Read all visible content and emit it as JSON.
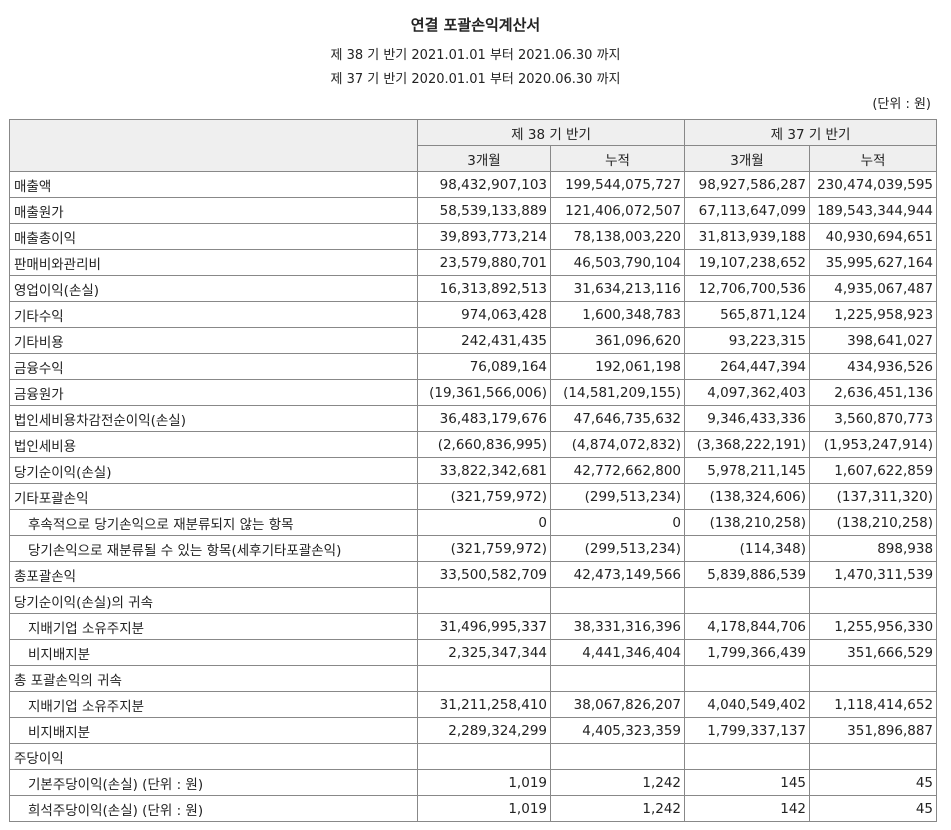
{
  "document": {
    "title": "연결 포괄손익계산서",
    "period_current": "제 38 기 반기 2021.01.01 부터 2021.06.30 까지",
    "period_prior": "제 37 기 반기 2020.01.01 부터 2020.06.30 까지",
    "unit": "(단위 : 원)"
  },
  "table": {
    "group_headers": [
      "제 38 기 반기",
      "제 37 기 반기"
    ],
    "sub_headers": [
      "3개월",
      "누적",
      "3개월",
      "누적"
    ],
    "rows": [
      {
        "label": "매출액",
        "indent": false,
        "values": [
          "98,432,907,103",
          "199,544,075,727",
          "98,927,586,287",
          "230,474,039,595"
        ]
      },
      {
        "label": "매출원가",
        "indent": false,
        "values": [
          "58,539,133,889",
          "121,406,072,507",
          "67,113,647,099",
          "189,543,344,944"
        ]
      },
      {
        "label": "매출총이익",
        "indent": false,
        "values": [
          "39,893,773,214",
          "78,138,003,220",
          "31,813,939,188",
          "40,930,694,651"
        ]
      },
      {
        "label": "판매비와관리비",
        "indent": false,
        "values": [
          "23,579,880,701",
          "46,503,790,104",
          "19,107,238,652",
          "35,995,627,164"
        ]
      },
      {
        "label": "영업이익(손실)",
        "indent": false,
        "values": [
          "16,313,892,513",
          "31,634,213,116",
          "12,706,700,536",
          "4,935,067,487"
        ]
      },
      {
        "label": "기타수익",
        "indent": false,
        "values": [
          "974,063,428",
          "1,600,348,783",
          "565,871,124",
          "1,225,958,923"
        ]
      },
      {
        "label": "기타비용",
        "indent": false,
        "values": [
          "242,431,435",
          "361,096,620",
          "93,223,315",
          "398,641,027"
        ]
      },
      {
        "label": "금융수익",
        "indent": false,
        "values": [
          "76,089,164",
          "192,061,198",
          "264,447,394",
          "434,936,526"
        ]
      },
      {
        "label": "금융원가",
        "indent": false,
        "values": [
          "(19,361,566,006)",
          "(14,581,209,155)",
          "4,097,362,403",
          "2,636,451,136"
        ]
      },
      {
        "label": "법인세비용차감전순이익(손실)",
        "indent": false,
        "values": [
          "36,483,179,676",
          "47,646,735,632",
          "9,346,433,336",
          "3,560,870,773"
        ]
      },
      {
        "label": "법인세비용",
        "indent": false,
        "values": [
          "(2,660,836,995)",
          "(4,874,072,832)",
          "(3,368,222,191)",
          "(1,953,247,914)"
        ]
      },
      {
        "label": "당기순이익(손실)",
        "indent": false,
        "values": [
          "33,822,342,681",
          "42,772,662,800",
          "5,978,211,145",
          "1,607,622,859"
        ]
      },
      {
        "label": "기타포괄손익",
        "indent": false,
        "values": [
          "(321,759,972)",
          "(299,513,234)",
          "(138,324,606)",
          "(137,311,320)"
        ]
      },
      {
        "label": "후속적으로 당기손익으로 재분류되지 않는 항목",
        "indent": true,
        "values": [
          "0",
          "0",
          "(138,210,258)",
          "(138,210,258)"
        ]
      },
      {
        "label": "당기손익으로 재분류될 수 있는 항목(세후기타포괄손익)",
        "indent": true,
        "values": [
          "(321,759,972)",
          "(299,513,234)",
          "(114,348)",
          "898,938"
        ]
      },
      {
        "label": "총포괄손익",
        "indent": false,
        "values": [
          "33,500,582,709",
          "42,473,149,566",
          "5,839,886,539",
          "1,470,311,539"
        ]
      },
      {
        "label": "당기순이익(손실)의 귀속",
        "indent": false,
        "values": [
          "",
          "",
          "",
          ""
        ]
      },
      {
        "label": "지배기업 소유주지분",
        "indent": true,
        "values": [
          "31,496,995,337",
          "38,331,316,396",
          "4,178,844,706",
          "1,255,956,330"
        ]
      },
      {
        "label": "비지배지분",
        "indent": true,
        "values": [
          "2,325,347,344",
          "4,441,346,404",
          "1,799,366,439",
          "351,666,529"
        ]
      },
      {
        "label": "총 포괄손익의 귀속",
        "indent": false,
        "values": [
          "",
          "",
          "",
          ""
        ]
      },
      {
        "label": "지배기업 소유주지분",
        "indent": true,
        "values": [
          "31,211,258,410",
          "38,067,826,207",
          "4,040,549,402",
          "1,118,414,652"
        ]
      },
      {
        "label": "비지배지분",
        "indent": true,
        "values": [
          "2,289,324,299",
          "4,405,323,359",
          "1,799,337,137",
          "351,896,887"
        ]
      },
      {
        "label": "주당이익",
        "indent": false,
        "values": [
          "",
          "",
          "",
          ""
        ]
      },
      {
        "label": "기본주당이익(손실) (단위 : 원)",
        "indent": true,
        "values": [
          "1,019",
          "1,242",
          "145",
          "45"
        ]
      },
      {
        "label": "희석주당이익(손실) (단위 : 원)",
        "indent": true,
        "values": [
          "1,019",
          "1,242",
          "142",
          "45"
        ]
      }
    ]
  }
}
